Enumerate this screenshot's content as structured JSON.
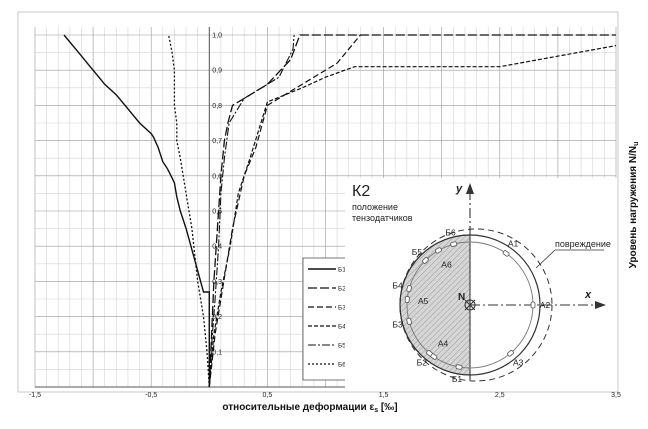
{
  "chart_data": {
    "type": "line",
    "xlabel": "относительные деформации ε",
    "xlabel_sub": "s",
    "xlabel_unit": " [‰]",
    "ylabel": "Уровень нагружения N/N",
    "ylabel_sub": "u",
    "xlim": [
      -1.5,
      3.5
    ],
    "ylim": [
      0,
      1.0
    ],
    "grid": true,
    "legend_position": "lower-right",
    "x_ticks": [
      "-1,5",
      "-0,5",
      "0,5",
      "1,5",
      "2,5",
      "3,5"
    ],
    "x_tick_values": [
      -1.5,
      -0.5,
      0.5,
      1.5,
      2.5,
      3.5
    ],
    "y_ticks": [
      "0,1",
      "0,2",
      "0,3",
      "0,4",
      "0,5",
      "0,6",
      "0,7",
      "0,8",
      "0,9",
      "1,0"
    ],
    "y_tick_values": [
      0.1,
      0.2,
      0.3,
      0.4,
      0.5,
      0.6,
      0.7,
      0.8,
      0.9,
      1.0
    ],
    "series": [
      {
        "name": "Б1",
        "dash": "",
        "width": 1.4,
        "points": [
          [
            0,
            0
          ],
          [
            0,
            0.27
          ],
          [
            -0.05,
            0.27
          ],
          [
            -0.1,
            0.33
          ],
          [
            -0.2,
            0.45
          ],
          [
            -0.25,
            0.5
          ],
          [
            -0.28,
            0.54
          ],
          [
            -0.3,
            0.58
          ],
          [
            -0.33,
            0.6
          ],
          [
            -0.36,
            0.62
          ],
          [
            -0.4,
            0.64
          ],
          [
            -0.44,
            0.68
          ],
          [
            -0.48,
            0.71
          ],
          [
            -0.5,
            0.72
          ],
          [
            -0.6,
            0.75
          ],
          [
            -0.7,
            0.79
          ],
          [
            -0.8,
            0.83
          ],
          [
            -0.9,
            0.86
          ],
          [
            -0.95,
            0.88
          ],
          [
            -1.0,
            0.9
          ],
          [
            -1.05,
            0.92
          ],
          [
            -1.1,
            0.94
          ],
          [
            -1.15,
            0.96
          ],
          [
            -1.25,
            1.0
          ]
        ]
      },
      {
        "name": "Б2",
        "dash": "9,3",
        "width": 1.3,
        "points": [
          [
            0,
            0
          ],
          [
            0.02,
            0.15
          ],
          [
            0.04,
            0.3
          ],
          [
            0.07,
            0.45
          ],
          [
            0.1,
            0.6
          ],
          [
            0.13,
            0.7
          ],
          [
            0.16,
            0.75
          ],
          [
            0.2,
            0.8
          ],
          [
            0.3,
            0.82
          ],
          [
            0.5,
            0.86
          ],
          [
            0.7,
            0.93
          ],
          [
            0.78,
            1.0
          ],
          [
            3.5,
            1.0
          ]
        ]
      },
      {
        "name": "Б3",
        "dash": "6,3",
        "width": 1.2,
        "points": [
          [
            0,
            0
          ],
          [
            0.05,
            0.15
          ],
          [
            0.1,
            0.25
          ],
          [
            0.15,
            0.35
          ],
          [
            0.2,
            0.45
          ],
          [
            0.3,
            0.6
          ],
          [
            0.4,
            0.68
          ],
          [
            0.5,
            0.8
          ],
          [
            0.7,
            0.84
          ],
          [
            0.9,
            0.88
          ],
          [
            1.1,
            0.92
          ],
          [
            1.3,
            1.0
          ]
        ]
      },
      {
        "name": "Б4",
        "dash": "4,2",
        "width": 1.2,
        "points": [
          [
            0,
            0
          ],
          [
            0.04,
            0.15
          ],
          [
            0.1,
            0.27
          ],
          [
            0.18,
            0.4
          ],
          [
            0.25,
            0.55
          ],
          [
            0.35,
            0.65
          ],
          [
            0.5,
            0.81
          ],
          [
            0.8,
            0.85
          ],
          [
            1.0,
            0.88
          ],
          [
            1.25,
            0.91
          ],
          [
            2.5,
            0.91
          ],
          [
            3.5,
            0.97
          ]
        ]
      },
      {
        "name": "Б5",
        "dash": "8,2,2,2",
        "width": 1.1,
        "points": [
          [
            0,
            0
          ],
          [
            0.02,
            0.12
          ],
          [
            0.05,
            0.25
          ],
          [
            0.08,
            0.4
          ],
          [
            0.1,
            0.55
          ],
          [
            0.13,
            0.65
          ],
          [
            0.17,
            0.75
          ],
          [
            0.3,
            0.82
          ],
          [
            0.45,
            0.85
          ],
          [
            0.6,
            0.88
          ],
          [
            0.72,
            0.96
          ],
          [
            0.73,
            1.0
          ]
        ]
      },
      {
        "name": "Б6",
        "dash": "2,2",
        "width": 1.3,
        "points": [
          [
            0,
            0
          ],
          [
            -0.02,
            0.1
          ],
          [
            -0.05,
            0.2
          ],
          [
            -0.1,
            0.3
          ],
          [
            -0.15,
            0.45
          ],
          [
            -0.2,
            0.55
          ],
          [
            -0.25,
            0.65
          ],
          [
            -0.28,
            0.7
          ],
          [
            -0.28,
            0.75
          ],
          [
            -0.3,
            0.8
          ],
          [
            -0.3,
            0.85
          ],
          [
            -0.3,
            0.9
          ],
          [
            -0.32,
            0.95
          ],
          [
            -0.35,
            1.0
          ]
        ]
      }
    ]
  },
  "inset": {
    "title": "К2",
    "subtitle_line1": "положение",
    "subtitle_line2": "тензодатчиков",
    "damage_label": "повреждение",
    "axis_x_label": "x",
    "axis_y_label": "y",
    "force_label": "N",
    "gauge_labels": [
      "Б1",
      "Б2",
      "Б3",
      "Б4",
      "Б5",
      "Б6",
      "А1",
      "А2",
      "А3",
      "А4",
      "А5",
      "А6"
    ]
  }
}
